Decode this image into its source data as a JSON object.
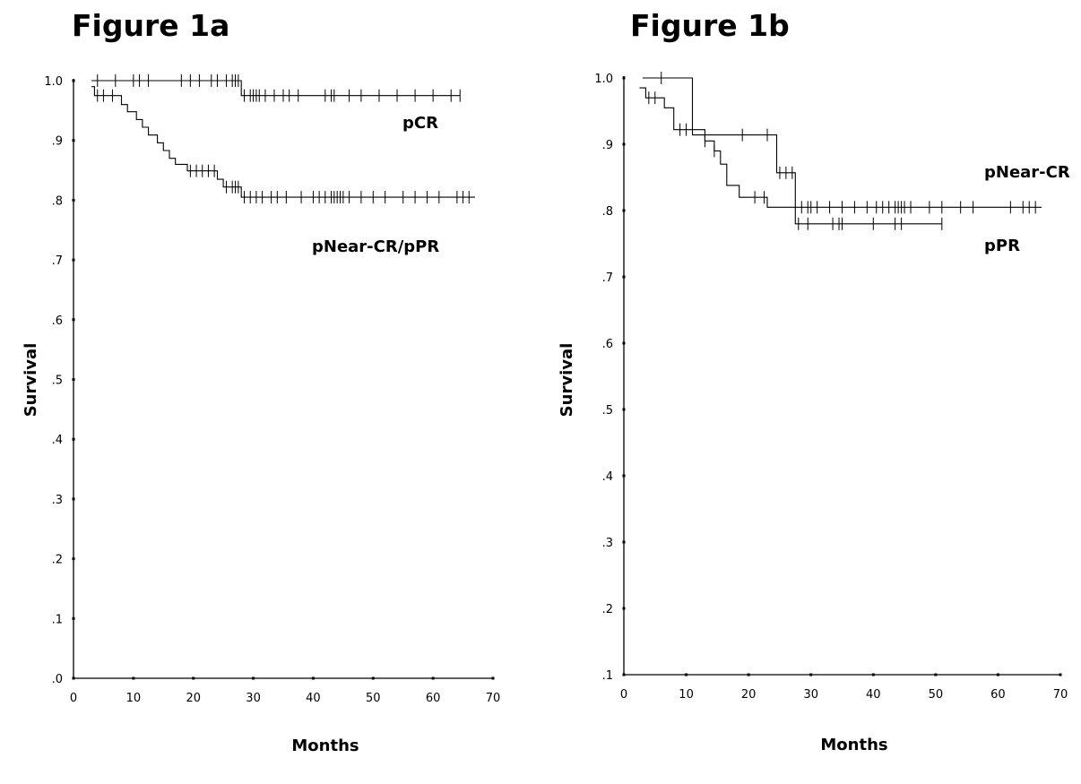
{
  "chart_data": [
    {
      "type": "line",
      "title": "Figure 1a",
      "xlabel": "Months",
      "ylabel": "Survival",
      "xlim": [
        0,
        70
      ],
      "ylim": [
        0.0,
        1.0
      ],
      "x_ticks": [
        0,
        10,
        20,
        30,
        40,
        50,
        60,
        70
      ],
      "x_tick_labels": [
        "0",
        "10",
        "20",
        "30",
        "40",
        "50",
        "60",
        "70"
      ],
      "y_ticks": [
        0.0,
        0.1,
        0.2,
        0.3,
        0.4,
        0.5,
        0.6,
        0.7,
        0.8,
        0.9,
        1.0
      ],
      "y_tick_labels": [
        ".0",
        ".1",
        ".2",
        ".3",
        ".4",
        ".5",
        ".6",
        ".7",
        ".8",
        ".9",
        "1.0"
      ],
      "grid": false,
      "series": [
        {
          "name": "pCR",
          "steps": [
            [
              3,
              1.0
            ],
            [
              28,
              1.0
            ],
            [
              28,
              0.975
            ],
            [
              64.5,
              0.975
            ]
          ],
          "censored_x": [
            4,
            7,
            10,
            11,
            12.5,
            18,
            19.5,
            21,
            23,
            24,
            25.5,
            26.5,
            27,
            27.5,
            28.5,
            29.5,
            30,
            30.5,
            31,
            32,
            33.5,
            35,
            36,
            37.5,
            42,
            43,
            43.5,
            46,
            48,
            51,
            54,
            57,
            60,
            63,
            64.5
          ]
        },
        {
          "name": "pNear-CR/pPR",
          "steps": [
            [
              3,
              0.99
            ],
            [
              3.5,
              0.99
            ],
            [
              3.5,
              0.975
            ],
            [
              8,
              0.975
            ],
            [
              8,
              0.96
            ],
            [
              9,
              0.96
            ],
            [
              9,
              0.948
            ],
            [
              10.5,
              0.948
            ],
            [
              10.5,
              0.935
            ],
            [
              11.5,
              0.935
            ],
            [
              11.5,
              0.922
            ],
            [
              12.5,
              0.922
            ],
            [
              12.5,
              0.909
            ],
            [
              14,
              0.909
            ],
            [
              14,
              0.896
            ],
            [
              15,
              0.896
            ],
            [
              15,
              0.883
            ],
            [
              16,
              0.883
            ],
            [
              16,
              0.87
            ],
            [
              17,
              0.87
            ],
            [
              17,
              0.86
            ],
            [
              19,
              0.86
            ],
            [
              19,
              0.849
            ],
            [
              24,
              0.849
            ],
            [
              24,
              0.835
            ],
            [
              25,
              0.835
            ],
            [
              25,
              0.822
            ],
            [
              28,
              0.822
            ],
            [
              28,
              0.805
            ],
            [
              67,
              0.805
            ]
          ],
          "censored_x": [
            4,
            5,
            6.5,
            19.5,
            20.5,
            21.5,
            22.5,
            23.5,
            25.5,
            26.5,
            27,
            27.5,
            28.5,
            29.5,
            30.5,
            31.5,
            33,
            34,
            35.5,
            38,
            40,
            41,
            42,
            43,
            43.5,
            44,
            44.5,
            45,
            46,
            48,
            50,
            52,
            55,
            57,
            59,
            61,
            64,
            65,
            66
          ]
        }
      ],
      "annotations": [
        "pCR",
        "pNear-CR/pPR"
      ]
    },
    {
      "type": "line",
      "title": "Figure 1b",
      "xlabel": "Months",
      "ylabel": "Survival",
      "xlim": [
        0,
        70
      ],
      "ylim": [
        0.1,
        1.0
      ],
      "x_ticks": [
        0,
        10,
        20,
        30,
        40,
        50,
        60,
        70
      ],
      "x_tick_labels": [
        "0",
        "10",
        "20",
        "30",
        "40",
        "50",
        "60",
        "70"
      ],
      "y_ticks": [
        0.1,
        0.2,
        0.3,
        0.4,
        0.5,
        0.6,
        0.7,
        0.8,
        0.9,
        1.0
      ],
      "y_tick_labels": [
        ".1",
        ".2",
        ".3",
        ".4",
        ".5",
        ".6",
        ".7",
        ".8",
        ".9",
        "1.0"
      ],
      "grid": false,
      "series": [
        {
          "name": "pNear-CR",
          "steps": [
            [
              3,
              1.0
            ],
            [
              11,
              1.0
            ],
            [
              11,
              0.914
            ],
            [
              24.5,
              0.914
            ],
            [
              24.5,
              0.857
            ],
            [
              27.5,
              0.857
            ],
            [
              27.5,
              0.805
            ],
            [
              67,
              0.805
            ]
          ],
          "censored_x": [
            6,
            19,
            23,
            25,
            26,
            27,
            28.5,
            29.5,
            30,
            31,
            33,
            35,
            37,
            39,
            40.5,
            41.5,
            42.5,
            43.5,
            44,
            44.5,
            45,
            46,
            49,
            51,
            54,
            56,
            62,
            64,
            65,
            66
          ]
        },
        {
          "name": "pPR",
          "steps": [
            [
              2.5,
              0.985
            ],
            [
              3.5,
              0.985
            ],
            [
              3.5,
              0.97
            ],
            [
              6.5,
              0.97
            ],
            [
              6.5,
              0.955
            ],
            [
              8,
              0.955
            ],
            [
              8,
              0.922
            ],
            [
              13,
              0.922
            ],
            [
              13,
              0.905
            ],
            [
              14.5,
              0.905
            ],
            [
              14.5,
              0.89
            ],
            [
              15.5,
              0.89
            ],
            [
              15.5,
              0.87
            ],
            [
              16.5,
              0.87
            ],
            [
              16.5,
              0.838
            ],
            [
              18.5,
              0.838
            ],
            [
              18.5,
              0.82
            ],
            [
              23,
              0.82
            ],
            [
              23,
              0.805
            ],
            [
              27.5,
              0.805
            ],
            [
              27.5,
              0.78
            ],
            [
              51,
              0.78
            ]
          ],
          "censored_x": [
            4,
            5,
            9,
            10,
            13,
            14.5,
            21,
            22.5,
            28,
            29.5,
            33.5,
            34.5,
            35,
            40,
            43.5,
            44.5,
            51
          ]
        }
      ],
      "annotations": [
        "pNear-CR",
        "pPR"
      ]
    }
  ]
}
